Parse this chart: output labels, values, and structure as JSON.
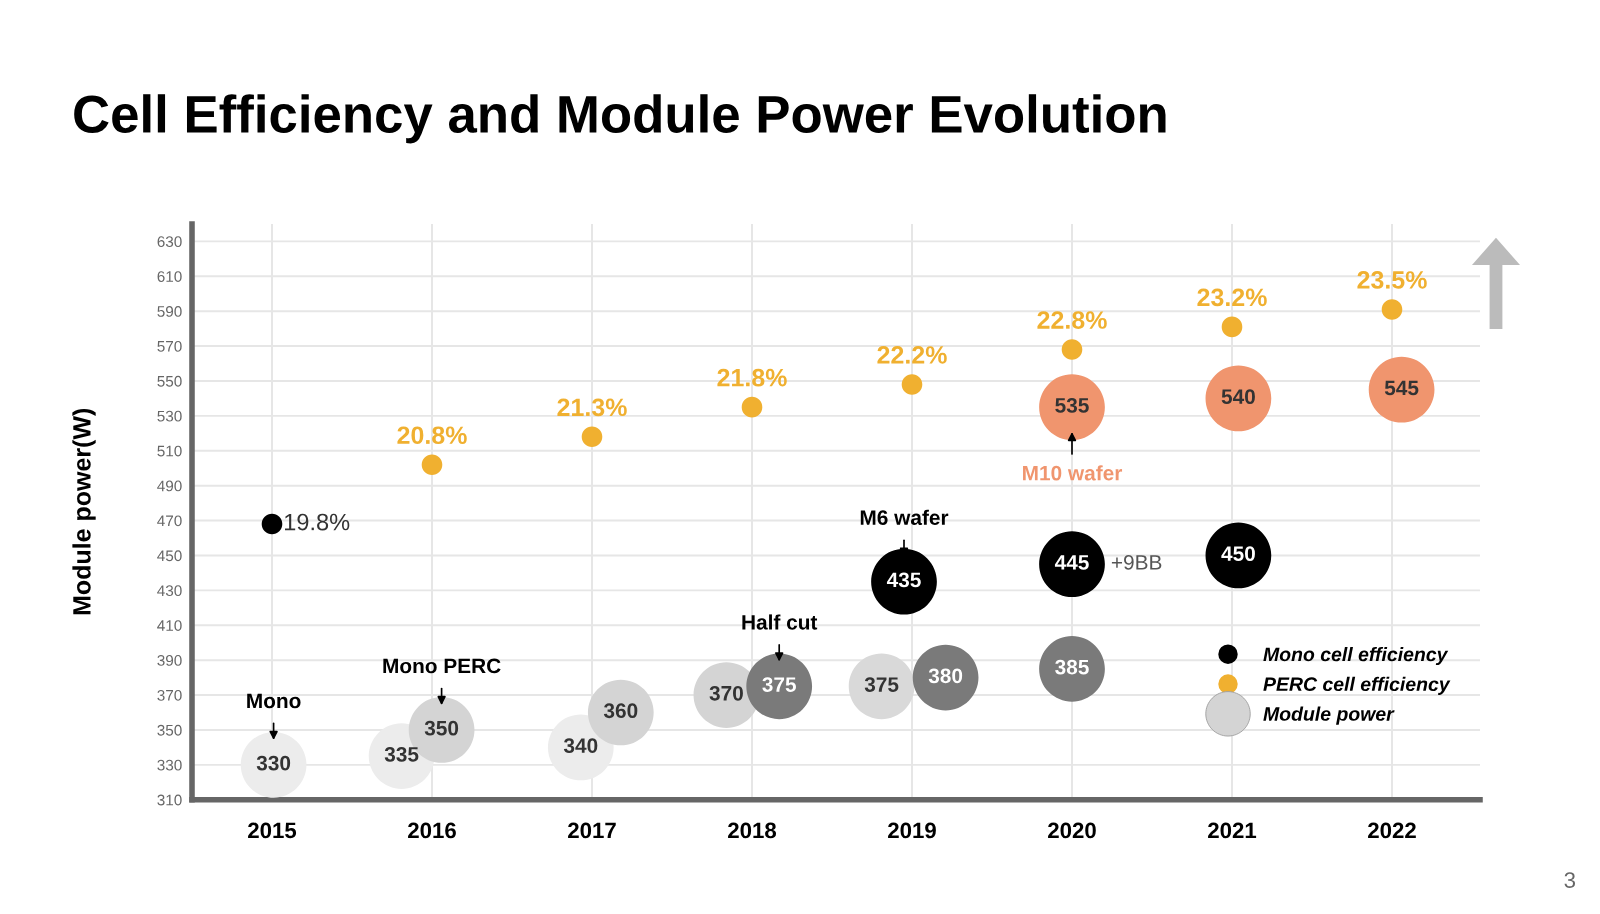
{
  "chart_data": {
    "type": "scatter",
    "title": "Cell Efficiency and Module Power Evolution",
    "ylabel": "Module power(W)",
    "xlim": [
      2014.5,
      2022.55
    ],
    "xticks": [
      2015,
      2016,
      2017,
      2018,
      2019,
      2020,
      2021,
      2022
    ],
    "ylim": [
      310,
      640
    ],
    "yticks": [
      310,
      330,
      350,
      370,
      390,
      410,
      430,
      450,
      470,
      490,
      510,
      530,
      550,
      570,
      590,
      610,
      630
    ],
    "grid": true,
    "legend": "bottom right",
    "marker": "circle",
    "series": [
      {
        "name": "Mono cell efficiency",
        "color": "#000000",
        "x": [
          2015.0
        ],
        "values": [
          468
        ]
      },
      {
        "name": "PERC cell efficiency",
        "color": "#f0b030",
        "x": [
          2016.0,
          2017.0,
          2018.0,
          2019.0,
          2020.0,
          2021.0,
          2022.0
        ],
        "values": [
          502,
          518,
          535,
          548,
          568,
          581,
          591
        ]
      },
      {
        "name": "Module power",
        "color": "#d4d4d4",
        "data_labels": true,
        "x": [
          2015.01,
          2015.81,
          2016.06,
          2016.93,
          2017.18,
          2017.84,
          2018.17,
          2018.81,
          2019.21,
          2020.0,
          2018.95,
          2020.0,
          2021.04,
          2020.0,
          2021.04,
          2022.06
        ],
        "values": [
          330,
          335,
          350,
          340,
          360,
          370,
          375,
          375,
          380,
          385,
          435,
          445,
          450,
          535,
          540,
          545
        ],
        "colors": [
          "#ececec",
          "#ececec",
          "#d4d4d4",
          "#ececec",
          "#d4d4d4",
          "#d4d4d4",
          "#7a7a7a",
          "#d9d9d9",
          "#7a7a7a",
          "#7a7a7a",
          "#000000",
          "#000000",
          "#000000",
          "#f0956e",
          "#f0956e",
          "#f0956e"
        ]
      }
    ],
    "annotations": [
      {
        "text": "19.8%",
        "x": 2015.0,
        "y": 468
      },
      {
        "text": "20.8%",
        "x": 2016.0,
        "y": 502
      },
      {
        "text": "21.3%",
        "x": 2017.0,
        "y": 518
      },
      {
        "text": "21.8%",
        "x": 2018.0,
        "y": 535
      },
      {
        "text": "22.2%",
        "x": 2019.0,
        "y": 548
      },
      {
        "text": "22.8%",
        "x": 2020.0,
        "y": 568
      },
      {
        "text": "23.2%",
        "x": 2021.0,
        "y": 581
      },
      {
        "text": "23.5%",
        "x": 2022.0,
        "y": 591
      },
      {
        "text": "Mono",
        "x": 2015.01,
        "y": 330
      },
      {
        "text": "Mono PERC",
        "x": 2016.06,
        "y": 350
      },
      {
        "text": "Half cut",
        "x": 2018.17,
        "y": 375
      },
      {
        "text": "M6 wafer",
        "x": 2018.95,
        "y": 435
      },
      {
        "text": "M10 wafer",
        "x": 2020.0,
        "y": 535
      },
      {
        "text": "+9BB",
        "x": 2020.0,
        "y": 445
      },
      "3"
    ]
  }
}
